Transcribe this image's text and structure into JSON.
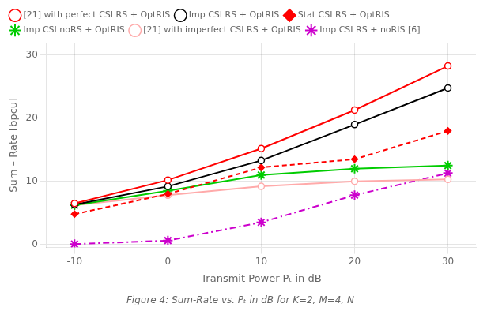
{
  "chart_data": {
    "type": "line",
    "x": [
      -10,
      0,
      10,
      20,
      30
    ],
    "series": [
      {
        "name": "[21] with perfect CSI RS + OptRIS",
        "color": "#ff0000",
        "values": [
          6.5,
          10.2,
          15.2,
          21.3,
          28.3
        ],
        "marker": "circle",
        "line_style": "solid"
      },
      {
        "name": "Imp CSI RS + OptRIS",
        "color": "#000000",
        "values": [
          6.3,
          9.2,
          13.3,
          19.0,
          24.8
        ],
        "marker": "circle",
        "line_style": "solid"
      },
      {
        "name": "Stat CSI RS + OptRIS",
        "color": "#ff0000",
        "values": [
          4.8,
          8.0,
          12.2,
          13.5,
          18.0
        ],
        "marker": "diamond",
        "line_style": "dashed"
      },
      {
        "name": "Imp CSI noRS + OptRIS",
        "color": "#00cc00",
        "values": [
          6.2,
          8.5,
          11.0,
          12.0,
          12.5
        ],
        "marker": "star",
        "line_style": "solid"
      },
      {
        "name": "[21] with imperfect CSI RS + OptRIS",
        "color": "#ffaaaa",
        "values": [
          6.2,
          7.8,
          9.2,
          10.0,
          10.3
        ],
        "marker": "circle",
        "line_style": "solid"
      },
      {
        "name": "Imp CSI RS + noRIS [6]",
        "color": "#cc00cc",
        "values": [
          0.05,
          0.6,
          3.5,
          7.8,
          11.3
        ],
        "marker": "star",
        "line_style": "dashdot"
      }
    ],
    "xlabel": "Transmit Power Pₜ in dB",
    "ylabel": "Sum – Rate [bpcu]",
    "caption": "Figure 4: Sum-Rate vs. Pₜ in dB for K=2, M=4, N",
    "xlim": [
      -13,
      33
    ],
    "ylim": [
      -0.5,
      32
    ],
    "xticks": [
      -10,
      0,
      10,
      20,
      30
    ],
    "yticks": [
      0,
      10,
      20,
      30
    ],
    "grid": true,
    "legend": "upper left"
  }
}
